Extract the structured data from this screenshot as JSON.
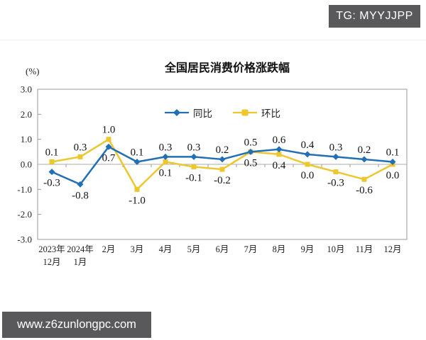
{
  "page": {
    "tg_badge": "TG: MYYJJPP",
    "watermark": "www.z6zunlongpc.com"
  },
  "chart_data": {
    "type": "line",
    "title": "全国居民消费价格涨跌幅",
    "unit_label": "(%)",
    "categories": [
      "2023年12月",
      "2024年1月",
      "2月",
      "3月",
      "4月",
      "5月",
      "6月",
      "7月",
      "8月",
      "9月",
      "10月",
      "11月",
      "12月"
    ],
    "x_tick_lines": [
      [
        "2023年",
        "12月"
      ],
      [
        "2024年",
        "1月"
      ],
      [
        "2月"
      ],
      [
        "3月"
      ],
      [
        "4月"
      ],
      [
        "5月"
      ],
      [
        "6月"
      ],
      [
        "7月"
      ],
      [
        "8月"
      ],
      [
        "9月"
      ],
      [
        "10月"
      ],
      [
        "11月"
      ],
      [
        "12月"
      ]
    ],
    "series": [
      {
        "name": "同比",
        "color": "#2170b5",
        "marker": "diamond",
        "values": [
          -0.3,
          -0.8,
          0.7,
          0.1,
          0.3,
          0.3,
          0.2,
          0.5,
          0.6,
          0.4,
          0.3,
          0.2,
          0.1
        ],
        "labels": [
          "-0.3",
          "-0.8",
          "0.7",
          "0.1",
          "0.3",
          "0.3",
          "0.2",
          "0.5",
          "0.6",
          "0.4",
          "0.3",
          "0.2",
          "0.1"
        ],
        "label_side": [
          "below",
          "below",
          "below",
          "above",
          "above",
          "above",
          "above",
          "above",
          "above",
          "above",
          "above",
          "above",
          "above"
        ]
      },
      {
        "name": "环比",
        "color": "#edc72e",
        "marker": "square",
        "values": [
          0.1,
          0.3,
          1.0,
          -1.0,
          0.1,
          -0.1,
          -0.2,
          0.5,
          0.4,
          0.0,
          -0.3,
          -0.6,
          0.0
        ],
        "labels": [
          "0.1",
          "0.3",
          "1.0",
          "-1.0",
          "0.1",
          "-0.1",
          "-0.2",
          "0.5",
          "0.4",
          "0.0",
          "-0.3",
          "-0.6",
          "0.0"
        ],
        "label_side": [
          "above",
          "above",
          "above",
          "below",
          "below",
          "below",
          "below",
          "below",
          "below",
          "below",
          "below",
          "below",
          "below"
        ]
      }
    ],
    "y_ticks": [
      "3.0",
      "2.0",
      "1.0",
      "0.0",
      "-1.0",
      "-2.0",
      "-3.0"
    ],
    "ylim": [
      -3,
      3
    ],
    "grid": false,
    "legend_position": "top-center-inside",
    "axis_color": "#9b9b9b",
    "zero_line_color": "#ababab"
  }
}
